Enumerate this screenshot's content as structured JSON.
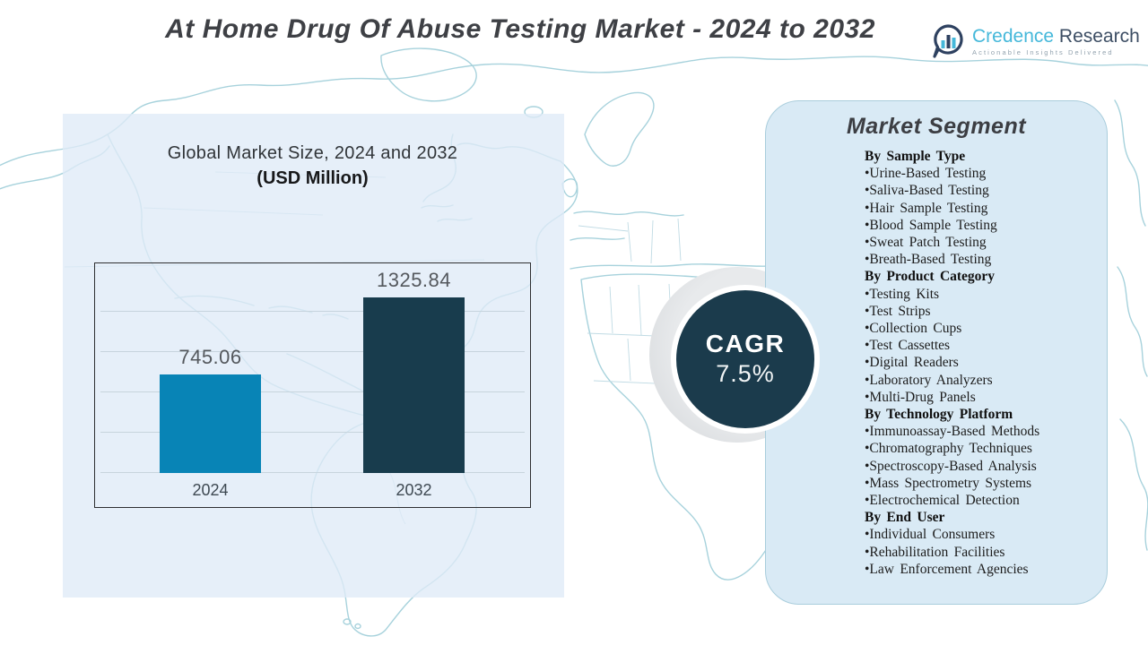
{
  "page": {
    "title": "At Home Drug Of Abuse Testing Market - 2024 to 2032"
  },
  "logo": {
    "name_primary": "Credence",
    "name_secondary": "Research",
    "tagline": "Actionable Insights Delivered"
  },
  "chart_data": {
    "type": "bar",
    "title": "Global Market Size, 2024 and 2032",
    "subtitle": "(USD Million)",
    "unit": "USD Million",
    "categories": [
      "2024",
      "2032"
    ],
    "values": [
      745.06,
      1325.84
    ],
    "value_labels": [
      "745.06",
      "1325.84"
    ],
    "bar_colors": [
      "#0884b6",
      "#183c4d"
    ],
    "ylim": [
      0,
      1600
    ],
    "grid": true,
    "legend": "none"
  },
  "cagr": {
    "label": "CAGR",
    "value": "7.5%"
  },
  "segment_panel": {
    "title": "Market Segment",
    "bullet": "•",
    "groups": [
      {
        "heading": "By Sample Type",
        "items": [
          "Urine-Based Testing",
          "Saliva-Based Testing",
          "Hair Sample Testing",
          "Blood Sample Testing",
          "Sweat Patch Testing",
          "Breath-Based Testing"
        ]
      },
      {
        "heading": "By Product Category",
        "items": [
          "Testing Kits",
          "Test Strips",
          "Collection Cups",
          "Test Cassettes",
          "Digital Readers",
          "Laboratory Analyzers",
          "Multi-Drug Panels"
        ]
      },
      {
        "heading": "By Technology Platform",
        "items": [
          "Immunoassay-Based Methods",
          "Chromatography Techniques",
          "Spectroscopy-Based Analysis",
          "Mass Spectrometry Systems",
          "Electrochemical Detection"
        ]
      },
      {
        "heading": "By End User",
        "items": [
          "Individual Consumers",
          "Rehabilitation Facilities",
          "Law Enforcement Agencies"
        ]
      }
    ]
  },
  "colors": {
    "accent_cyan": "#45b8da",
    "dark_navy": "#3d4e64",
    "bar_2024": "#0884b6",
    "bar_2032": "#183c4d",
    "cagr_circle": "#1b3b4c",
    "panel_bg": "#d9eaf5",
    "map_line": "#a7d2dc",
    "light_rect": "#e3edf7"
  }
}
